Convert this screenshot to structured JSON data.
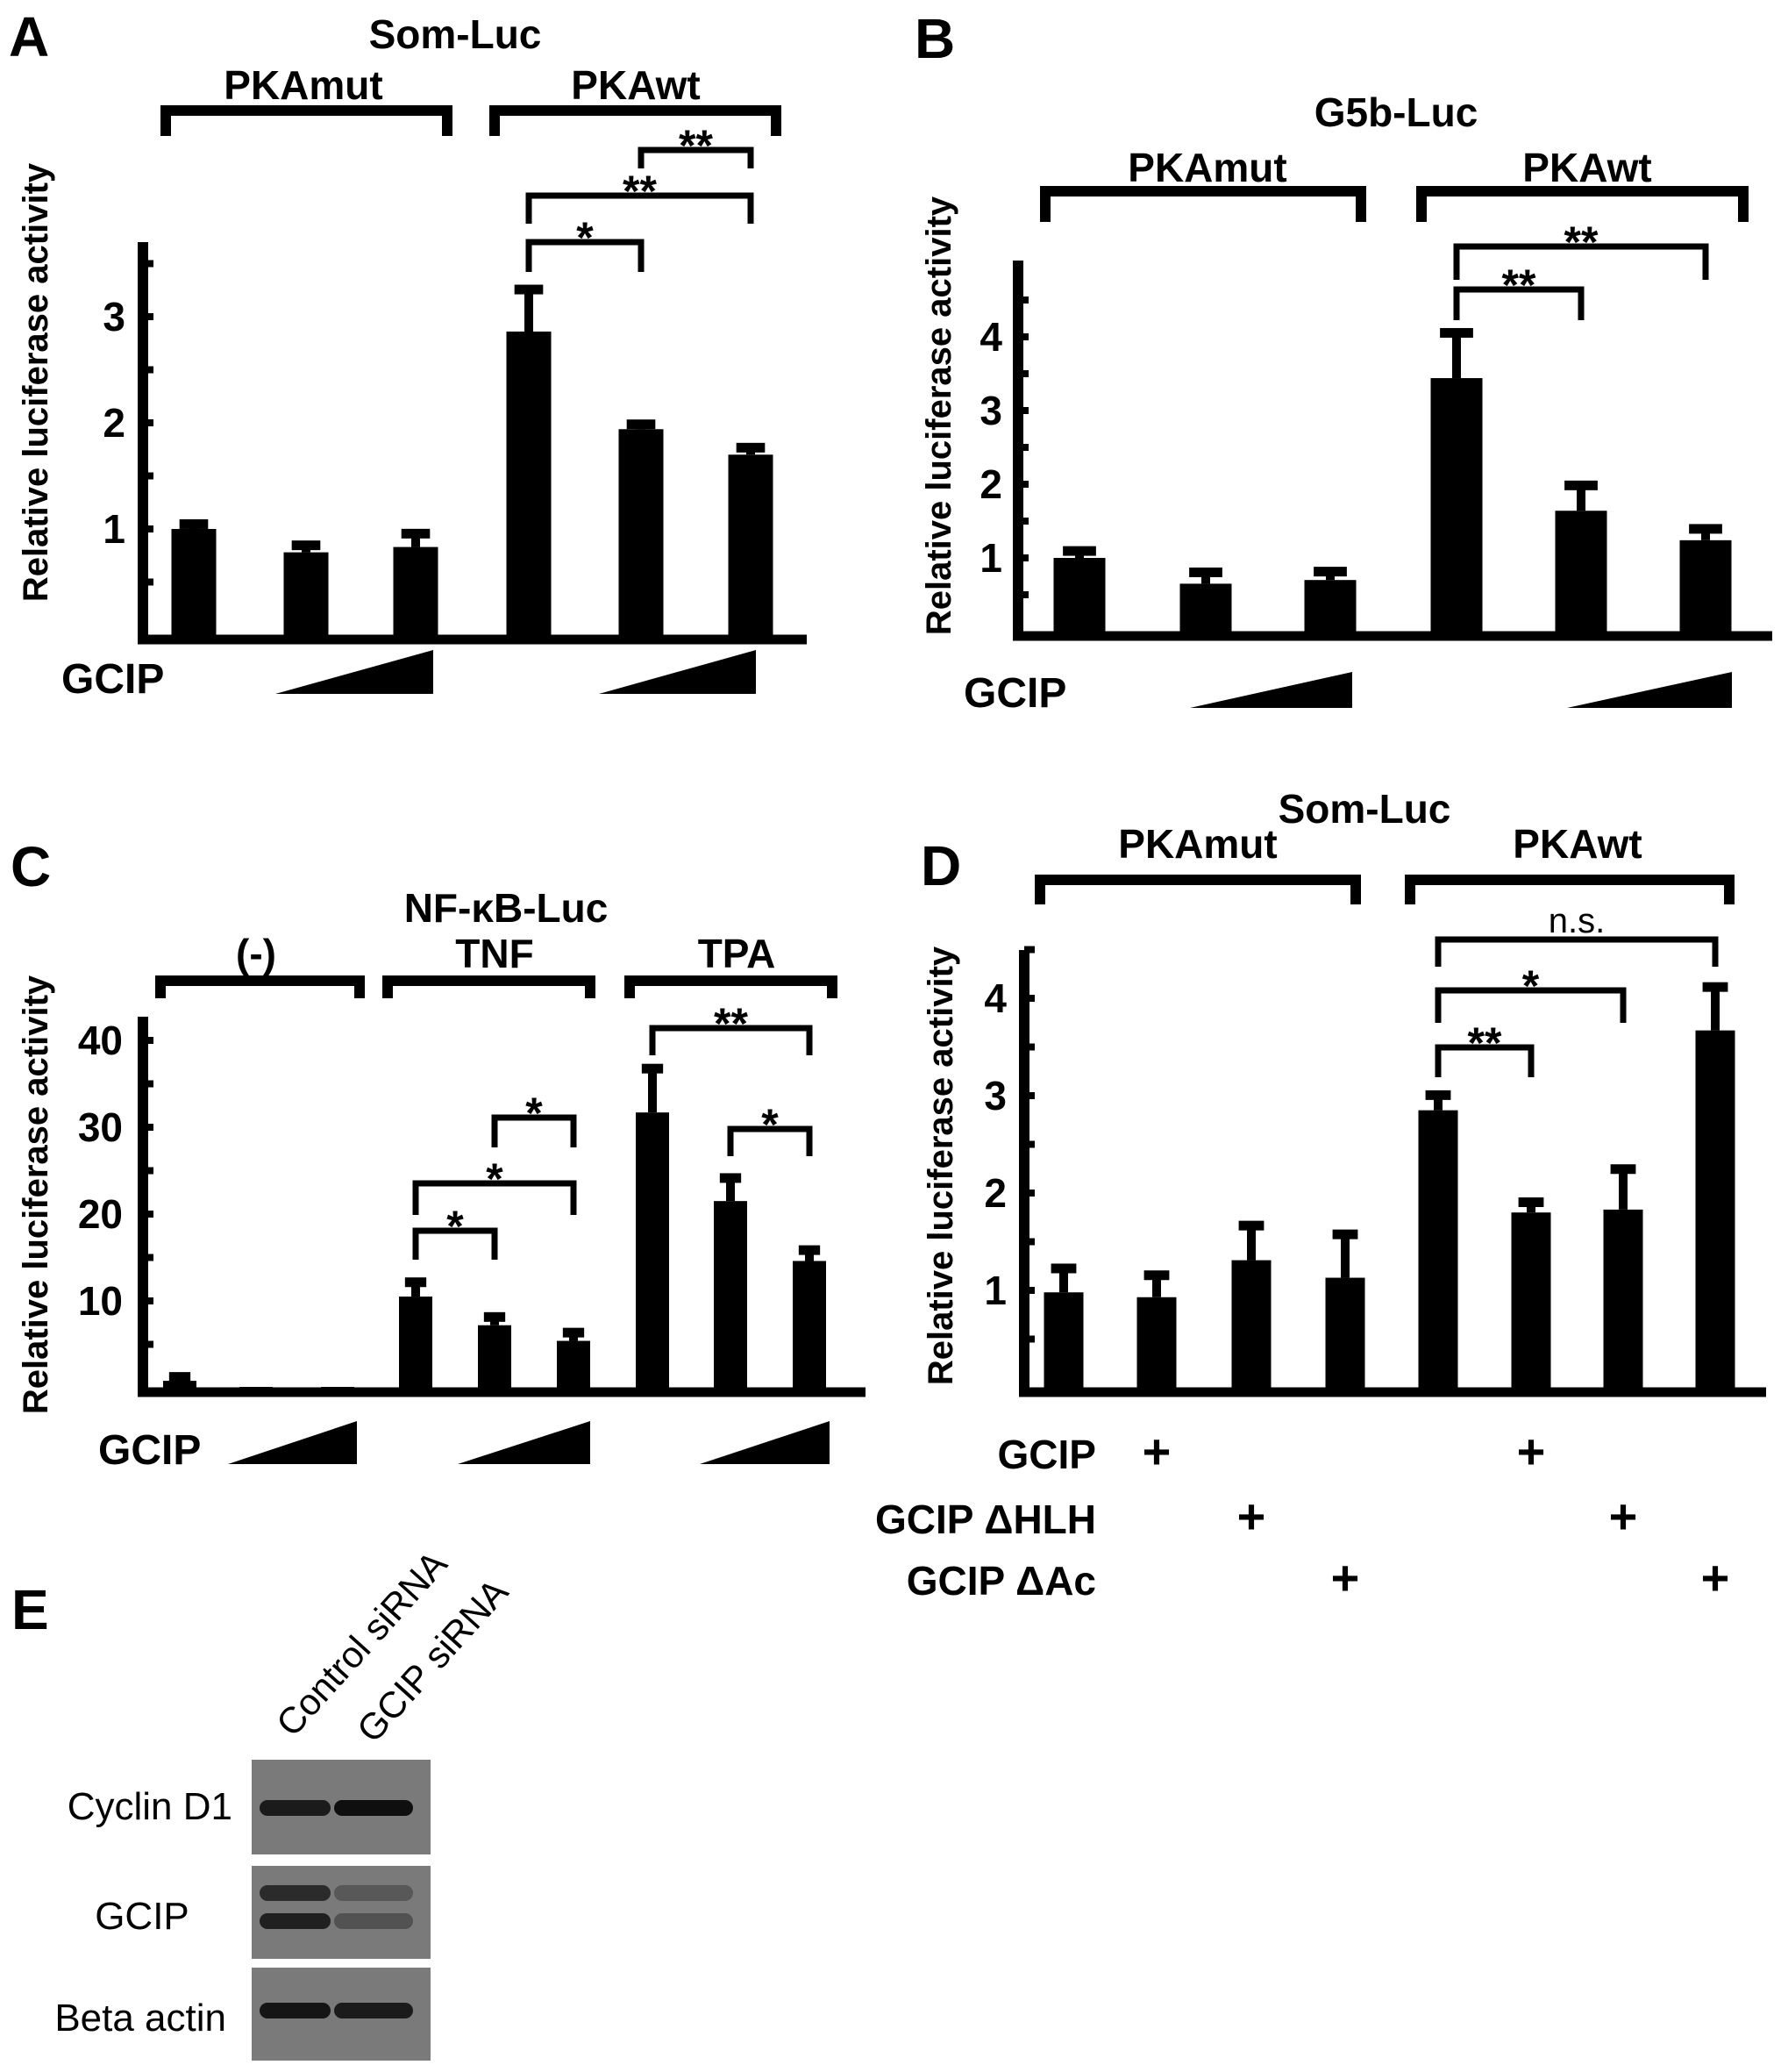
{
  "chart_data": [
    {
      "panel": "A",
      "type": "bar",
      "title": "Som-Luc",
      "groups": [
        "PKAmut",
        "PKAwt"
      ],
      "ylabel": "Relative luciferase activity",
      "yticks": [
        1,
        2,
        3
      ],
      "ylim": [
        0,
        3.7
      ],
      "grid": false,
      "values": [
        1.0,
        0.78,
        0.83,
        2.86,
        1.94,
        1.7
      ],
      "errors": [
        0.05,
        0.07,
        0.13,
        0.4,
        0.05,
        0.07
      ],
      "treatment_label": "GCIP",
      "treatment": "increasing GCIP (wedge) over bars 2-3 of each group",
      "significance": [
        {
          "bars": [
            3,
            4
          ],
          "label": "*"
        },
        {
          "bars": [
            3,
            5
          ],
          "label": "**"
        },
        {
          "bars": [
            4,
            5
          ],
          "label": "**"
        }
      ]
    },
    {
      "panel": "B",
      "type": "bar",
      "title": "G5b-Luc",
      "groups": [
        "PKAmut",
        "PKAwt"
      ],
      "ylabel": "Relative luciferase activity",
      "yticks": [
        1,
        2,
        3,
        4
      ],
      "ylim": [
        0,
        5.0
      ],
      "grid": false,
      "values": [
        1.0,
        0.65,
        0.7,
        3.44,
        1.64,
        1.24
      ],
      "errors": [
        0.1,
        0.16,
        0.12,
        0.62,
        0.35,
        0.16
      ],
      "treatment_label": "GCIP",
      "significance": [
        {
          "bars": [
            3,
            4
          ],
          "label": "**"
        },
        {
          "bars": [
            3,
            5
          ],
          "label": "**"
        }
      ]
    },
    {
      "panel": "C",
      "type": "bar",
      "title": "NF-κB-Luc",
      "groups": [
        "(-)",
        "TNF",
        "TPA"
      ],
      "ylabel": "Relative luciferase activity",
      "yticks": [
        10,
        20,
        30,
        40
      ],
      "ylim": [
        0,
        42
      ],
      "grid": false,
      "values": [
        0.8,
        0.1,
        0.1,
        10.5,
        7.2,
        5.4,
        31.7,
        21.5,
        14.6
      ],
      "errors": [
        0.5,
        0,
        0,
        1.7,
        1.0,
        1.0,
        5.1,
        2.7,
        1.3
      ],
      "treatment_label": "GCIP",
      "significance": [
        {
          "bars": [
            3,
            4
          ],
          "label": "*"
        },
        {
          "bars": [
            3,
            5
          ],
          "label": "*"
        },
        {
          "bars": [
            4,
            5
          ],
          "label": "*"
        },
        {
          "bars": [
            6,
            8
          ],
          "label": "**"
        },
        {
          "bars": [
            7,
            8
          ],
          "label": "*"
        }
      ]
    },
    {
      "panel": "D",
      "type": "bar",
      "title": "Som-Luc",
      "groups": [
        "PKAmut",
        "PKAwt"
      ],
      "ylabel": "Relative luciferase activity",
      "yticks": [
        1,
        2,
        3,
        4
      ],
      "ylim": [
        0,
        4.5
      ],
      "grid": false,
      "values": [
        0.98,
        0.93,
        1.31,
        1.13,
        2.85,
        1.8,
        1.83,
        3.67
      ],
      "errors": [
        0.25,
        0.23,
        0.36,
        0.45,
        0.16,
        0.11,
        0.42,
        0.45
      ],
      "conditions": [
        {
          "label": "GCIP",
          "marker": "+",
          "present": [
            0,
            1,
            0,
            0,
            0,
            1,
            0,
            0
          ]
        },
        {
          "label": "GCIP ΔHLH",
          "marker": "+",
          "present": [
            0,
            0,
            1,
            0,
            0,
            0,
            1,
            0
          ]
        },
        {
          "label": "GCIP ΔAc",
          "marker": "+",
          "present": [
            0,
            0,
            0,
            1,
            0,
            0,
            0,
            1
          ]
        }
      ],
      "significance": [
        {
          "bars": [
            4,
            5
          ],
          "label": "**"
        },
        {
          "bars": [
            4,
            6
          ],
          "label": "*"
        },
        {
          "bars": [
            4,
            7
          ],
          "label": "n.s."
        }
      ]
    }
  ],
  "western_blot": {
    "panel": "E",
    "lanes": [
      "Control siRNA",
      "GCIP siRNA"
    ],
    "rows": [
      {
        "label": "Cyclin D1",
        "bands": [
          [
            0.85,
            0.95
          ]
        ]
      },
      {
        "label": "GCIP",
        "bands": [
          [
            0.7,
            0.3
          ],
          [
            0.8,
            0.35
          ]
        ]
      },
      {
        "label": "Beta actin",
        "bands": [
          [
            0.9,
            0.85
          ]
        ]
      }
    ],
    "membrane_color": "#7a7a7a",
    "band_color": "#0a0a0a"
  },
  "colors": {
    "bar": "#000000",
    "background": "#ffffff"
  }
}
